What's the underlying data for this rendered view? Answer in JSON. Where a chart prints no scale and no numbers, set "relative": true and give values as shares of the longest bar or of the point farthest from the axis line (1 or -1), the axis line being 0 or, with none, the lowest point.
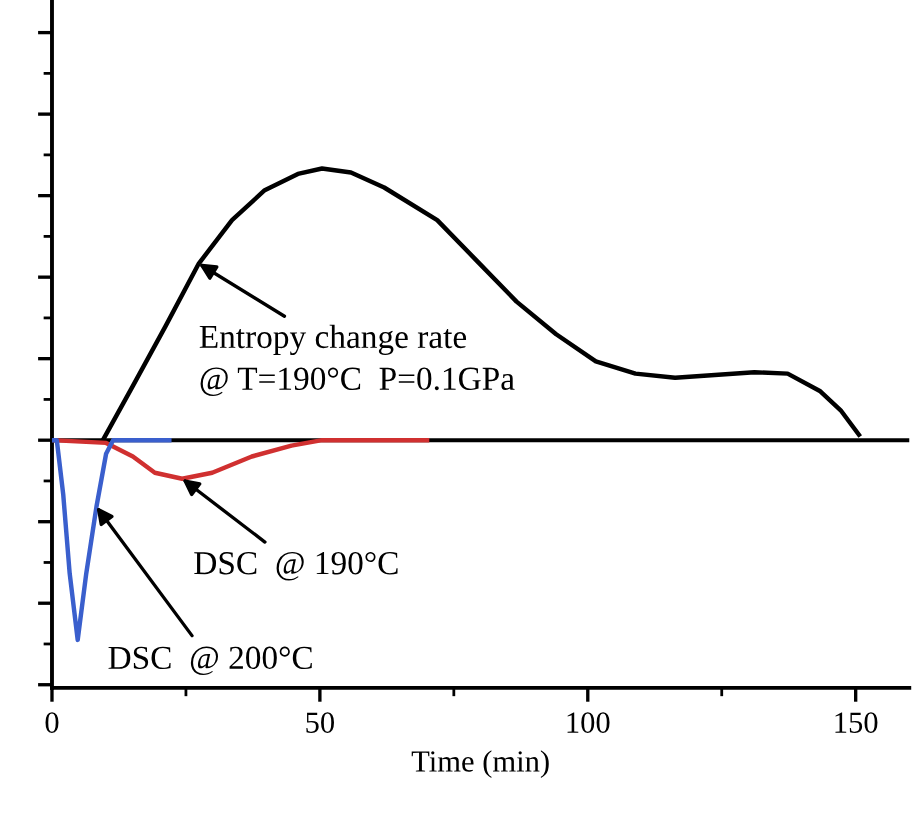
{
  "chart_data": {
    "type": "line",
    "relative": true,
    "xlabel": "Time (min)",
    "xlim": [
      0,
      160
    ],
    "xticks": [
      0,
      50,
      100,
      150
    ],
    "grid": false,
    "legend": false,
    "marker": "none",
    "line_style": "solid",
    "ref_lines": [
      {
        "axis": "y",
        "value": 0,
        "color": "#000000"
      }
    ],
    "series": [
      {
        "color": "#000000",
        "x": [
          9.5,
          15.1,
          21.2,
          27.4,
          33.6,
          39.7,
          45.9,
          50.4,
          55.8,
          62,
          71.9,
          79.3,
          86.7,
          94.1,
          101.5,
          108.9,
          116.3,
          123.7,
          131.1,
          137.3,
          143.4,
          147.2,
          150.6
        ],
        "values": [
          0,
          0.2,
          0.42,
          0.65,
          0.81,
          0.92,
          0.98,
          1.0,
          0.985,
          0.93,
          0.81,
          0.66,
          0.51,
          0.39,
          0.29,
          0.245,
          0.23,
          0.24,
          0.25,
          0.245,
          0.18,
          0.11,
          0.02
        ]
      },
      {
        "color": "#d03030",
        "x": [
          0,
          10.1,
          15.1,
          19.2,
          24.3,
          29.9,
          37.3,
          44.7,
          50.4,
          70
        ],
        "values": [
          0,
          -0.01,
          -0.06,
          -0.12,
          -0.142,
          -0.12,
          -0.06,
          -0.02,
          0,
          0
        ]
      },
      {
        "color": "#3a5fcd",
        "x": [
          0,
          0.9,
          2.1,
          3.3,
          4.8,
          6.4,
          8.3,
          10.1,
          11.4,
          21.9
        ],
        "values": [
          0,
          0,
          -0.2,
          -0.49,
          -0.735,
          -0.49,
          -0.245,
          -0.05,
          0,
          0
        ]
      }
    ],
    "annotations": [
      {
        "text": "Entropy change rate\n@ T=190°C  P=0.1GPa",
        "x": 27.4,
        "y": 0.65
      },
      {
        "text": "DSC  @ 190°C",
        "x": 24.3,
        "y": -0.142
      },
      {
        "text": "DSC  @ 200°C",
        "x": 8.3,
        "y": -0.245
      }
    ]
  }
}
